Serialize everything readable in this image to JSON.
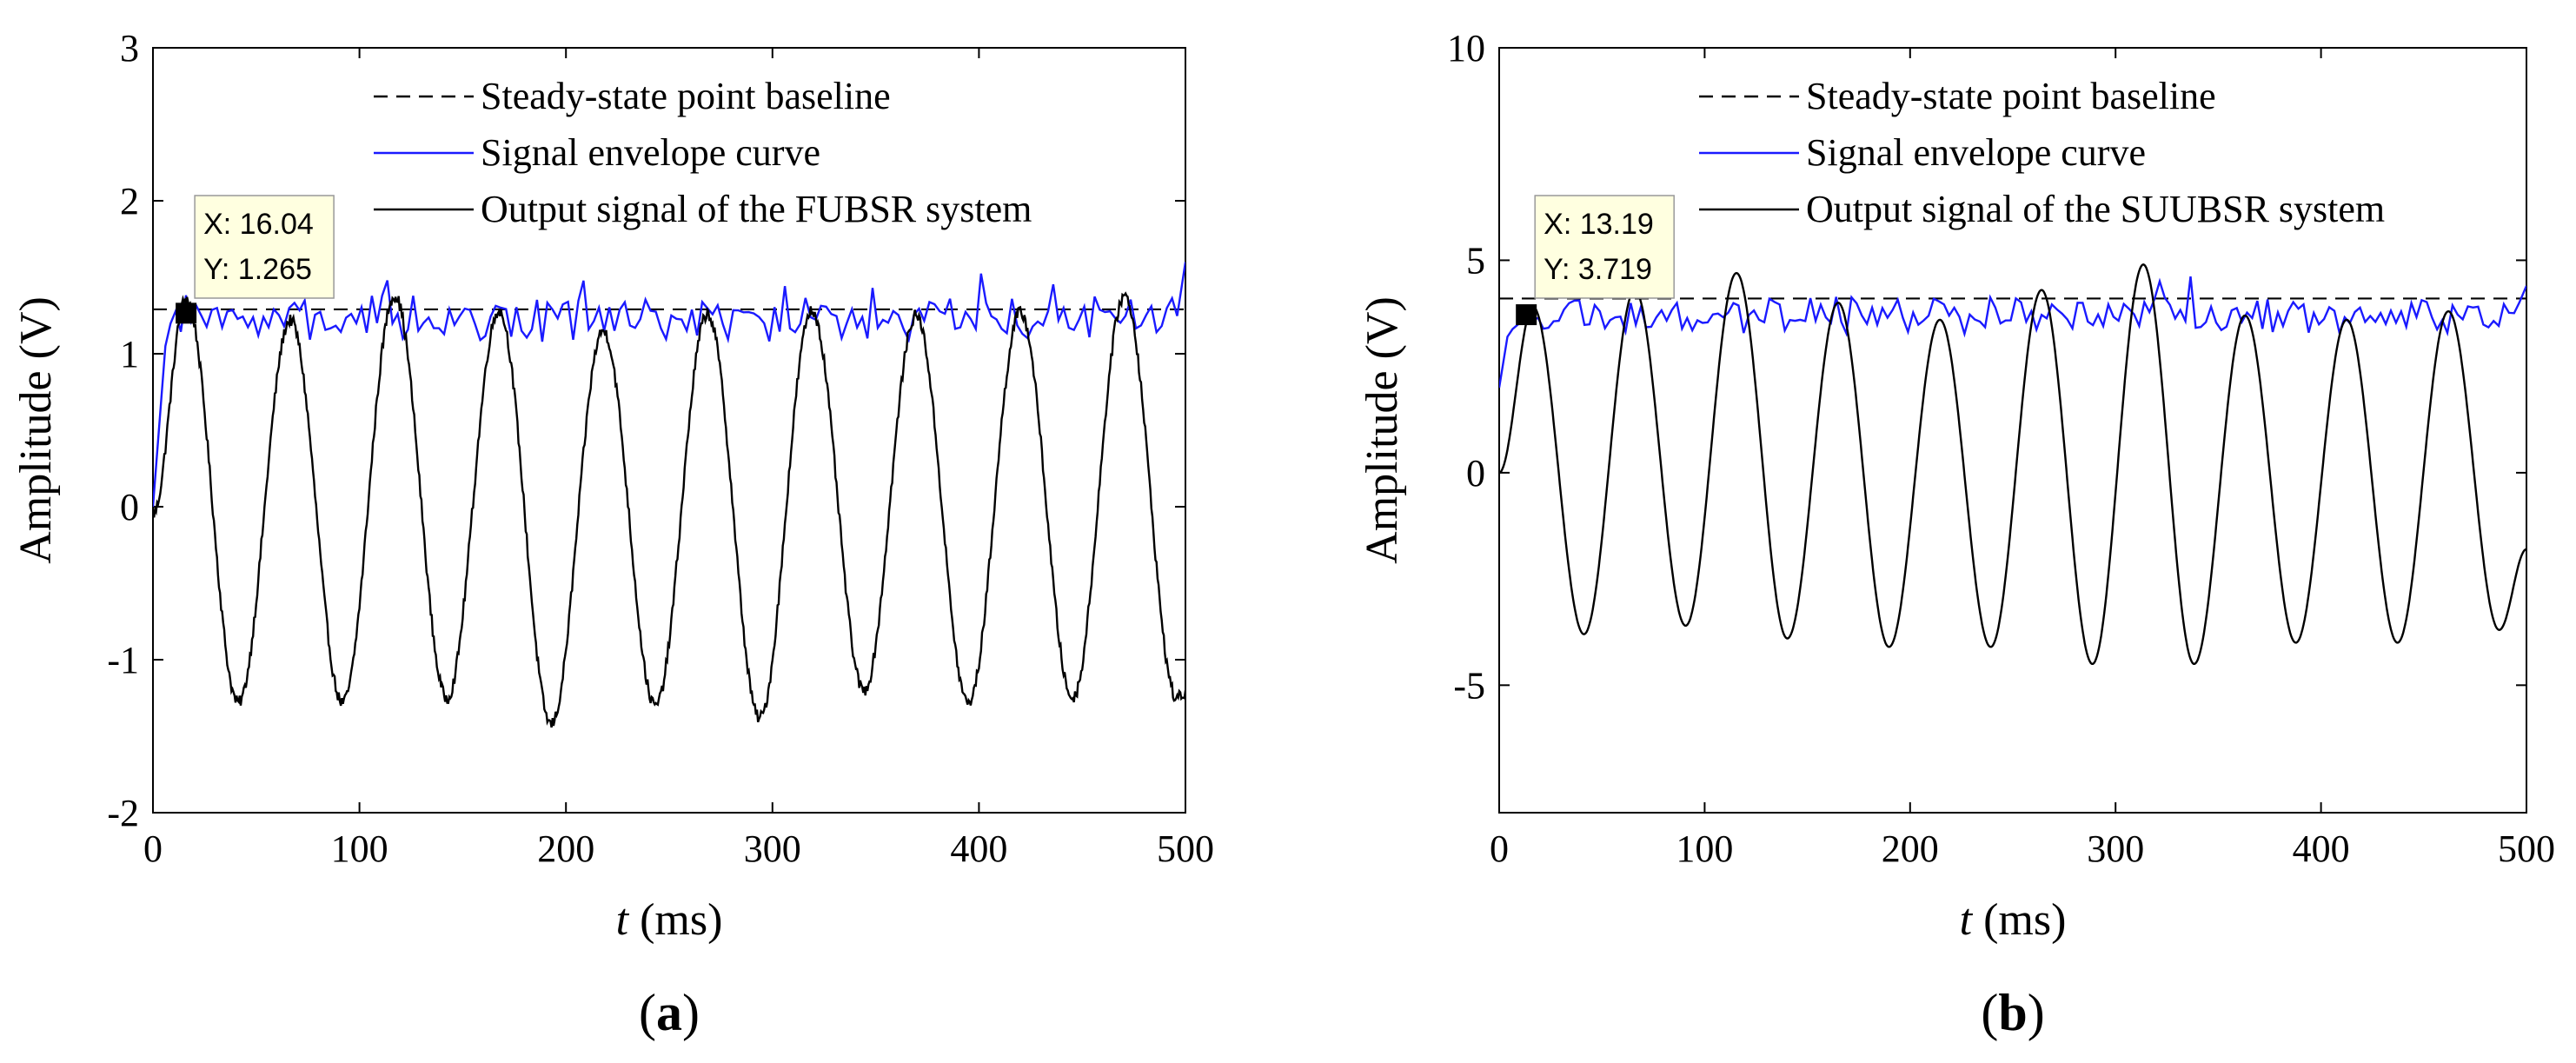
{
  "chart_data": [
    {
      "type": "line",
      "panel_label": "a",
      "xlabel_var": "t",
      "xlabel_unit": " (ms)",
      "ylabel": "Amplitude (V)",
      "xlim": [
        0,
        500
      ],
      "ylim": [
        -2,
        3
      ],
      "xticks": [
        0,
        100,
        200,
        300,
        400,
        500
      ],
      "yticks": [
        -2,
        -1,
        0,
        1,
        2,
        3
      ],
      "legend": [
        "Steady-state point baseline",
        "Signal envelope curve",
        "Output signal of the FUBSR system"
      ],
      "colors": {
        "baseline": "#000000",
        "envelope": "#1a1aff",
        "output": "#000000"
      },
      "baseline_value": 1.29,
      "datatip": {
        "x": 16.04,
        "y": 1.265,
        "x_text": "X: 16.04",
        "y_text": "Y: 1.265"
      },
      "series": [
        {
          "name": "Output signal of the FUBSR system",
          "model": "sine_oscillation",
          "period_ms": 50.5,
          "first_peak_ms": 16.04,
          "peaks": [
            1.36,
            1.22,
            1.38,
            1.28,
            1.15,
            1.26,
            1.28,
            1.25,
            1.27,
            1.38
          ],
          "troughs": [
            -1.28,
            -1.28,
            -1.25,
            -1.42,
            -1.3,
            -1.38,
            -1.2,
            -1.28,
            -1.25,
            -1.25
          ],
          "start_value": -0.05,
          "end_value": -1.22,
          "noise": 0.04
        },
        {
          "name": "Signal envelope curve",
          "model": "noisy_envelope",
          "start_value": 0.0,
          "rise_to": 1.05,
          "rise_end_ms": 6,
          "mean": 1.22,
          "spread": 0.12,
          "end_value": 1.6
        }
      ]
    },
    {
      "type": "line",
      "panel_label": "b",
      "xlabel_var": "t",
      "xlabel_unit": " (ms)",
      "ylabel": "Amplitude (V)",
      "xlim": [
        0,
        500
      ],
      "ylim": [
        -8,
        10
      ],
      "xticks": [
        0,
        100,
        200,
        300,
        400,
        500
      ],
      "yticks": [
        -5,
        0,
        5,
        10
      ],
      "legend": [
        "Steady-state point baseline",
        "Signal envelope curve",
        "Output signal of the SUUBSR system"
      ],
      "colors": {
        "baseline": "#000000",
        "envelope": "#1a1aff",
        "output": "#000000"
      },
      "baseline_value": 4.1,
      "datatip": {
        "x": 13.19,
        "y": 3.719,
        "x_text": "X: 13.19",
        "y_text": "Y: 3.719"
      },
      "series": [
        {
          "name": "Output signal of the SUUBSR system",
          "model": "sine_oscillation",
          "period_ms": 49.5,
          "first_peak_ms": 16.5,
          "peaks": [
            3.9,
            4.3,
            4.7,
            4.0,
            3.6,
            4.3,
            4.9,
            3.7,
            3.6,
            3.8
          ],
          "troughs": [
            -3.8,
            -3.6,
            -3.9,
            -4.1,
            -4.1,
            -4.5,
            -4.5,
            -4.0,
            -4.0,
            -3.7
          ],
          "start_value": 0.0,
          "end_value": -1.8,
          "noise": 0.0
        },
        {
          "name": "Signal envelope curve",
          "model": "noisy_envelope",
          "start_value": 2.0,
          "rise_to": 3.2,
          "rise_end_ms": 4,
          "mean": 3.7,
          "spread": 0.35,
          "end_value": 4.4
        }
      ]
    }
  ]
}
